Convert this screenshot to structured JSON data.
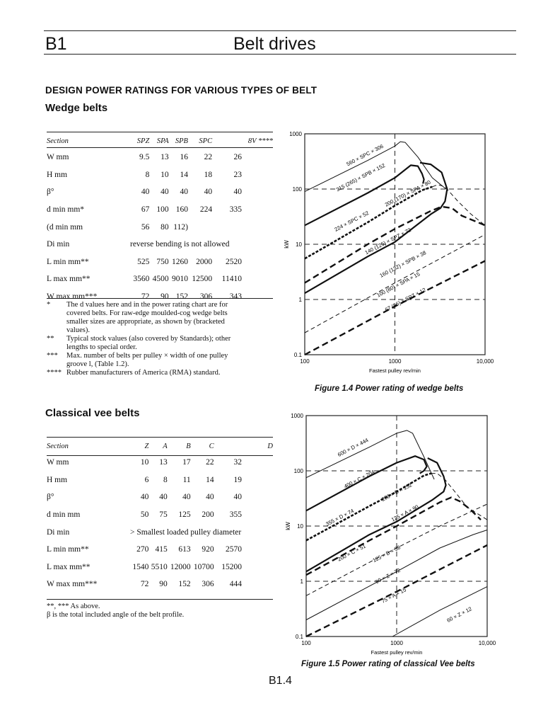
{
  "header": {
    "section_code": "B1",
    "title": "Belt drives"
  },
  "page_heading": "DESIGN POWER RATINGS FOR VARIOUS TYPES OF BELT",
  "wedge": {
    "heading": "Wedge belts",
    "columns": [
      "Section",
      "SPZ",
      "SPA",
      "SPB",
      "SPC",
      "8V ****"
    ],
    "rows": [
      {
        "label": "W mm",
        "values": [
          "9.5",
          "13",
          "16",
          "22",
          "26"
        ]
      },
      {
        "label": "H mm",
        "values": [
          "8",
          "10",
          "14",
          "18",
          "23"
        ]
      },
      {
        "label": "β°",
        "values": [
          "40",
          "40",
          "40",
          "40",
          "40"
        ]
      },
      {
        "label": "d min mm*",
        "values": [
          "67",
          "100",
          "160",
          "224",
          "335"
        ]
      },
      {
        "label": "(d min mm",
        "values": [
          "56",
          "80",
          "112)",
          "",
          ""
        ]
      },
      {
        "label": "Di min",
        "span": "reverse bending is not allowed"
      },
      {
        "label": "L min mm**",
        "values": [
          "525",
          "750",
          "1260",
          "2000",
          "2520"
        ]
      },
      {
        "label": "L max mm**",
        "values": [
          "3560",
          "4500",
          "9010",
          "12500",
          "11410"
        ]
      },
      {
        "label": "W max mm***",
        "values": [
          "72",
          "90",
          "152",
          "306",
          "343"
        ]
      }
    ],
    "notes": [
      {
        "mark": "*",
        "text": "The d values here and in the power rating chart are for covered belts. For raw-edge moulded-cog wedge belts smaller sizes are appropriate, as shown by (bracketed values)."
      },
      {
        "mark": "**",
        "text": "Typical stock values (also covered by Standards); other lengths to special order."
      },
      {
        "mark": "***",
        "text": "Max. number of belts per pulley × width of one pulley groove l, (Table 1.2)."
      },
      {
        "mark": "****",
        "text": "Rubber manufacturers of America (RMA) standard."
      }
    ]
  },
  "classical": {
    "heading": "Classical vee belts",
    "columns": [
      "Section",
      "Z",
      "A",
      "B",
      "C",
      "D"
    ],
    "rows": [
      {
        "label": "W mm",
        "values": [
          "10",
          "13",
          "17",
          "22",
          "32"
        ]
      },
      {
        "label": "H mm",
        "values": [
          "6",
          "8",
          "11",
          "14",
          "19"
        ]
      },
      {
        "label": "β°",
        "values": [
          "40",
          "40",
          "40",
          "40",
          "40"
        ]
      },
      {
        "label": "d min mm",
        "values": [
          "50",
          "75",
          "125",
          "200",
          "355"
        ]
      },
      {
        "label": "Di min",
        "span": "> Smallest loaded pulley diameter"
      },
      {
        "label": "L min mm**",
        "values": [
          "270",
          "415",
          "613",
          "920",
          "2570"
        ]
      },
      {
        "label": "L max mm**",
        "values": [
          "1540",
          "5510",
          "12000",
          "10700",
          "15200"
        ]
      },
      {
        "label": "W max mm***",
        "values": [
          "72",
          "90",
          "152",
          "306",
          "444"
        ]
      }
    ],
    "notes": [
      {
        "mark": "",
        "text": "**, *** As above."
      },
      {
        "mark": "",
        "text": "β is the total included angle of the belt profile."
      }
    ]
  },
  "chart_data": [
    {
      "type": "line",
      "caption": "Figure 1.4 Power rating of wedge belts",
      "xlabel": "Fastest pulley rev/min",
      "ylabel": "kW",
      "xscale": "log",
      "yscale": "log",
      "xlim": [
        100,
        10000
      ],
      "ylim": [
        0.1,
        1000
      ],
      "xticks": [
        "100",
        "1000",
        "10,000"
      ],
      "yticks": [
        "0.1",
        "1",
        "10",
        "100",
        "1000"
      ],
      "grid": "dashed at 1, 10, 100 kW and 1000 rev/min",
      "series": [
        {
          "name": "560 × SPC × 306",
          "style": "thin",
          "points": [
            [
              100,
              90
            ],
            [
              500,
              330
            ],
            [
              1000,
              600
            ],
            [
              1150,
              720
            ],
            [
              1300,
              700
            ],
            [
              1800,
              380
            ],
            [
              2600,
              160
            ],
            [
              3700,
              100
            ]
          ],
          "label_at": [
            300,
            260
          ]
        },
        {
          "name": "315 (265) × SPB × 152",
          "style": "thick",
          "points": [
            [
              100,
              22
            ],
            [
              500,
              85
            ],
            [
              1000,
              160
            ],
            [
              1500,
              270
            ],
            [
              1800,
              260
            ],
            [
              2000,
              190
            ],
            [
              2100,
              150
            ],
            [
              2050,
              125
            ]
          ],
          "label_at": [
            230,
            90
          ]
        },
        {
          "name": "224 × SPC × 52",
          "style": "double-dash",
          "points": [
            [
              100,
              5.5
            ],
            [
              500,
              25
            ],
            [
              1000,
              50
            ],
            [
              2000,
              95
            ],
            [
              2600,
              110
            ]
          ],
          "label_at": [
            220,
            17
          ]
        },
        {
          "name": "200 (170) × SPA × 80",
          "style": "thin-dash",
          "points": [
            [
              2600,
              110
            ],
            [
              3000,
              120
            ],
            [
              3600,
              110
            ],
            [
              5000,
              60
            ],
            [
              7000,
              35
            ],
            [
              10000,
              22
            ]
          ],
          "label_at": [
            800,
            48
          ]
        },
        {
          "name": "140 (125) × SPZ × 72",
          "style": "thick-dash",
          "points": [
            [
              100,
              2
            ],
            [
              500,
              10
            ],
            [
              1000,
              19
            ],
            [
              2500,
              40
            ],
            [
              3300,
              48
            ],
            [
              4300,
              45
            ],
            [
              5500,
              33
            ],
            [
              7000,
              28
            ],
            [
              10000,
              22
            ]
          ],
          "label_at": [
            480,
            6.5
          ]
        },
        {
          "name": "160 (132) × SPB × 38",
          "style": "thick",
          "points": [
            [
              100,
              1.3
            ],
            [
              500,
              6
            ],
            [
              1000,
              11
            ],
            [
              2500,
              35
            ],
            [
              3200,
              45
            ],
            [
              3600,
              60
            ],
            [
              3800,
              100
            ],
            [
              3300,
              200
            ],
            [
              2500,
              280
            ],
            [
              1900,
              300
            ]
          ],
          "label_at": [
            700,
            2.5
          ]
        },
        {
          "name": "100 (80) × SPA × 15",
          "style": "thin-dash",
          "points": [
            [
              100,
              0.25
            ],
            [
              1000,
              2
            ],
            [
              10000,
              15
            ]
          ],
          "label_at": [
            650,
            1.1
          ]
        },
        {
          "name": "67 (56) × SPZ × 12",
          "style": "thick-dash",
          "points": [
            [
              100,
              0.1
            ],
            [
              1000,
              0.75
            ],
            [
              10000,
              5
            ]
          ],
          "label_at": [
            800,
            0.6
          ]
        }
      ]
    },
    {
      "type": "line",
      "caption": "Figure 1.5 Power rating of classical Vee belts",
      "xlabel": "Fastest pulley rev/min",
      "ylabel": "kW",
      "xscale": "log",
      "yscale": "log",
      "xlim": [
        100,
        10000
      ],
      "ylim": [
        0.1,
        1000
      ],
      "xticks": [
        "100",
        "1000",
        "10,000"
      ],
      "yticks": [
        "0.1",
        "1",
        "10",
        "100",
        "1000"
      ],
      "grid": "dashed at 1, 10, 100 kW and 1000 rev/min",
      "series": [
        {
          "name": "600 × D × 444",
          "style": "thin",
          "points": [
            [
              100,
              75
            ],
            [
              500,
              270
            ],
            [
              1000,
              480
            ],
            [
              1300,
              540
            ],
            [
              1500,
              480
            ],
            [
              2000,
              180
            ],
            [
              2600,
              70
            ]
          ],
          "label_at": [
            230,
            180
          ]
        },
        {
          "name": "400 × C × 204",
          "style": "thick",
          "points": [
            [
              100,
              19
            ],
            [
              500,
              80
            ],
            [
              1000,
              140
            ],
            [
              1600,
              185
            ],
            [
              2000,
              160
            ],
            [
              2150,
              120
            ],
            [
              2000,
              100
            ],
            [
              1800,
              90
            ]
          ],
          "label_at": [
            270,
            48
          ]
        },
        {
          "name": "355 × D × 74",
          "style": "double-dash",
          "points": [
            [
              100,
              5.5
            ],
            [
              500,
              23
            ],
            [
              1000,
              42
            ],
            [
              2000,
              82
            ],
            [
              2400,
              90
            ]
          ],
          "label_at": [
            170,
            10
          ]
        },
        {
          "name": "200 × B × 152",
          "style": "thin-dash",
          "points": [
            [
              2400,
              90
            ],
            [
              2800,
              90
            ],
            [
              3400,
              70
            ],
            [
              4500,
              40
            ],
            [
              6000,
              22
            ],
            [
              10000,
              13
            ]
          ],
          "label_at": [
            700,
            28
          ]
        },
        {
          "name": "200 × C × 51",
          "style": "thick",
          "points": [
            [
              100,
              1.5
            ],
            [
              500,
              7
            ],
            [
              1000,
              12
            ],
            [
              2500,
              30
            ],
            [
              3300,
              42
            ],
            [
              3500,
              55
            ],
            [
              3300,
              80
            ],
            [
              2800,
              140
            ],
            [
              2200,
              170
            ]
          ],
          "label_at": [
            230,
            2.3
          ]
        },
        {
          "name": "125 × B × 38",
          "style": "thick-dash",
          "points": [
            [
              100,
              1.3
            ],
            [
              500,
              5.5
            ],
            [
              1000,
              10
            ],
            [
              3000,
              27
            ],
            [
              4000,
              33
            ],
            [
              5000,
              28
            ],
            [
              6500,
              20
            ],
            [
              8500,
              13
            ]
          ],
          "label_at": [
            560,
            2.2
          ]
        },
        {
          "name": "125 × A × 90",
          "style": "thin-dash",
          "points": [
            [
              100,
              0.55
            ],
            [
              1000,
              4
            ],
            [
              3000,
              10
            ],
            [
              10000,
              25
            ]
          ],
          "label_at": [
            900,
            12
          ]
        },
        {
          "name": "90 × Z × 72",
          "style": "thin",
          "points": [
            [
              100,
              0.2
            ],
            [
              1000,
              1.5
            ],
            [
              3000,
              4
            ],
            [
              7000,
              7
            ],
            [
              10000,
              8.5
            ]
          ],
          "label_at": [
            600,
            0.9
          ]
        },
        {
          "name": "75 × A × 15",
          "style": "thick-dash",
          "points": [
            [
              100,
              0.1
            ],
            [
              1000,
              0.65
            ],
            [
              10000,
              4.5
            ]
          ],
          "label_at": [
            700,
            0.4
          ]
        },
        {
          "name": "60 × Z × 12",
          "style": "thin",
          "points": [
            [
              900,
              0.1
            ],
            [
              3000,
              0.3
            ],
            [
              10000,
              0.8
            ]
          ],
          "label_at": [
            3700,
            0.18
          ]
        }
      ]
    }
  ],
  "page_number": "B1.4"
}
